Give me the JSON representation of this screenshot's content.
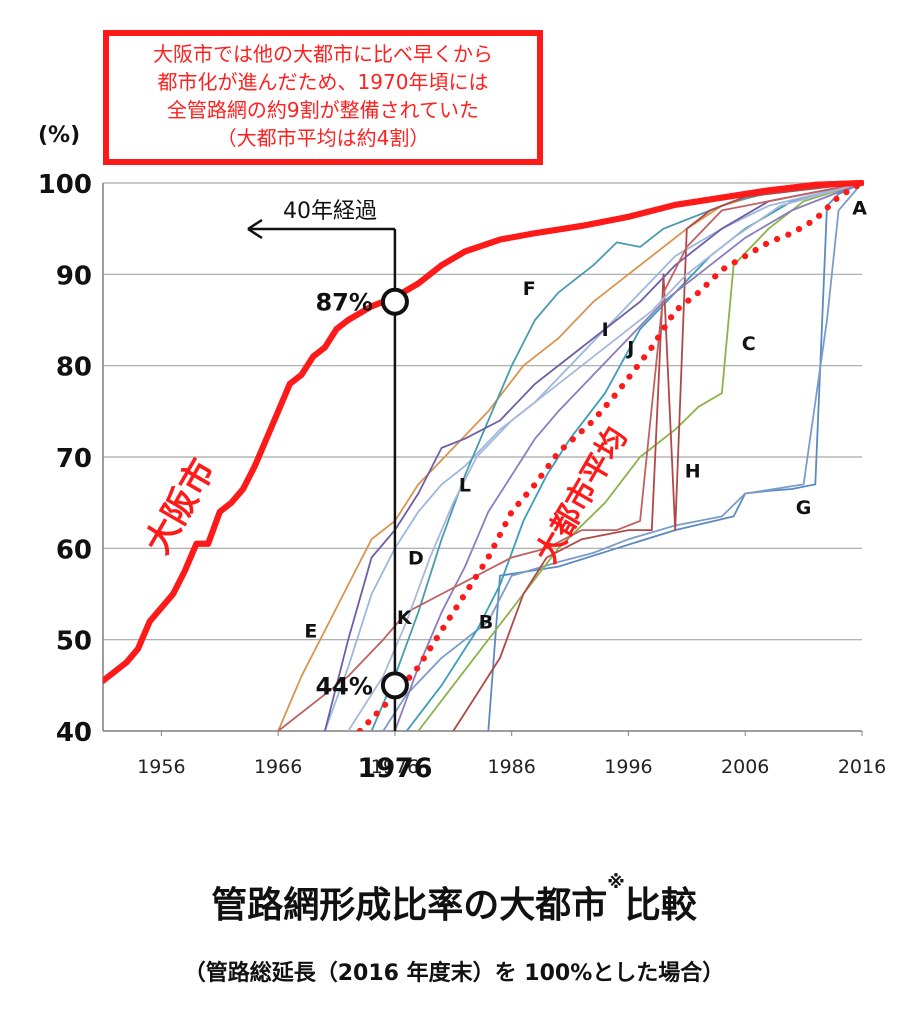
{
  "callout": {
    "lines": [
      "大阪市では他の大都市に比べ早くから",
      "都市化が進んだため、1970年頃には",
      "全管路網の約9割が整備されていた",
      "（大都市平均は約4割）"
    ]
  },
  "caption": {
    "title_main": "管路網形成比率の大都市",
    "title_mark": "※",
    "title_tail": "比較",
    "subtitle": "（管路総延長（2016 年度末）を 100%とした場合）"
  },
  "chart_data": {
    "type": "line",
    "ylabel": "(%)",
    "ylim": [
      40,
      100
    ],
    "xlim": [
      1951,
      2016
    ],
    "y_ticks": [
      40,
      50,
      60,
      70,
      80,
      90,
      100
    ],
    "x_ticks": [
      1956,
      1966,
      1976,
      1986,
      1996,
      2006,
      2016
    ],
    "x_highlight_label": "1976",
    "grid": true,
    "colors": {
      "osaka": "#ff1a1a",
      "average": "#ff1a1a",
      "annotation": "#ff1a1a"
    },
    "annotations": {
      "arrow_label": "40年経過",
      "marker_high": {
        "label": "87%",
        "x": 1976,
        "y": 87
      },
      "marker_low": {
        "label": "44%",
        "x": 1976,
        "y": 45
      },
      "osaka_label": "大阪市",
      "average_label": "大都市平均"
    },
    "series": [
      {
        "name": "大阪市",
        "color": "#ff1a1a",
        "style": "thick",
        "points": [
          [
            1951,
            45.5
          ],
          [
            1953,
            47.5
          ],
          [
            1954,
            49
          ],
          [
            1955,
            52
          ],
          [
            1957,
            55
          ],
          [
            1958,
            57.5
          ],
          [
            1959,
            60.5
          ],
          [
            1960,
            60.5
          ],
          [
            1961,
            64
          ],
          [
            1962,
            65
          ],
          [
            1963,
            66.5
          ],
          [
            1964,
            69
          ],
          [
            1965,
            72
          ],
          [
            1966,
            75
          ],
          [
            1967,
            78
          ],
          [
            1968,
            79
          ],
          [
            1969,
            81
          ],
          [
            1970,
            82
          ],
          [
            1971,
            84
          ],
          [
            1972,
            85
          ],
          [
            1974,
            86.5
          ],
          [
            1976,
            87.5
          ],
          [
            1978,
            89
          ],
          [
            1980,
            91
          ],
          [
            1982,
            92.5
          ],
          [
            1985,
            93.8
          ],
          [
            1988,
            94.5
          ],
          [
            1992,
            95.3
          ],
          [
            1996,
            96.3
          ],
          [
            2000,
            97.6
          ],
          [
            2004,
            98.4
          ],
          [
            2008,
            99.2
          ],
          [
            2012,
            99.8
          ],
          [
            2016,
            100
          ]
        ]
      },
      {
        "name": "大都市平均",
        "color": "#ff1a1a",
        "style": "dotted",
        "points": [
          [
            1973,
            40
          ],
          [
            1976,
            44
          ],
          [
            1978,
            47
          ],
          [
            1980,
            51
          ],
          [
            1982,
            55
          ],
          [
            1984,
            59
          ],
          [
            1986,
            64
          ],
          [
            1988,
            67
          ],
          [
            1990,
            70.5
          ],
          [
            1993,
            74
          ],
          [
            1995,
            77
          ],
          [
            1998,
            82
          ],
          [
            2000,
            86
          ],
          [
            2002,
            88
          ],
          [
            2004,
            90.5
          ],
          [
            2006,
            92
          ],
          [
            2008,
            93.5
          ],
          [
            2010,
            94.5
          ],
          [
            2012,
            96
          ],
          [
            2014,
            98.5
          ],
          [
            2016,
            100
          ]
        ]
      },
      {
        "name": "A",
        "color": "#5b8ac0",
        "points": [
          [
            1984,
            40
          ],
          [
            1985,
            57
          ],
          [
            1990,
            58
          ],
          [
            1995,
            60
          ],
          [
            2000,
            62
          ],
          [
            2005,
            63.5
          ],
          [
            2006,
            66
          ],
          [
            2008,
            66.3
          ],
          [
            2010,
            66.5
          ],
          [
            2012,
            67
          ],
          [
            2013,
            97.5
          ],
          [
            2014,
            98.8
          ],
          [
            2016,
            100
          ]
        ]
      },
      {
        "name": "G",
        "color": "#7b9cc9",
        "points": [
          [
            1975,
            40
          ],
          [
            1977,
            44
          ],
          [
            1980,
            48
          ],
          [
            1984,
            52
          ],
          [
            1986,
            57
          ],
          [
            1990,
            58.5
          ],
          [
            1993,
            59.5
          ],
          [
            1996,
            61
          ],
          [
            2000,
            62.5
          ],
          [
            2004,
            63.5
          ],
          [
            2006,
            66
          ],
          [
            2011,
            67
          ],
          [
            2013,
            85
          ],
          [
            2014,
            97
          ],
          [
            2016,
            100
          ]
        ]
      },
      {
        "name": "B",
        "color": "#3a9dbb",
        "points": [
          [
            1977,
            40
          ],
          [
            1980,
            45
          ],
          [
            1983,
            51
          ],
          [
            1985,
            56
          ],
          [
            1987,
            63
          ],
          [
            1989,
            68
          ],
          [
            1991,
            72
          ],
          [
            1994,
            77
          ],
          [
            1997,
            84
          ],
          [
            2000,
            88
          ],
          [
            2003,
            92
          ],
          [
            2006,
            95
          ],
          [
            2010,
            98
          ],
          [
            2016,
            100
          ]
        ]
      },
      {
        "name": "C",
        "color": "#8ab34a",
        "points": [
          [
            1978,
            40
          ],
          [
            1981,
            45
          ],
          [
            1984,
            50
          ],
          [
            1987,
            55
          ],
          [
            1990,
            60
          ],
          [
            1994,
            65
          ],
          [
            1997,
            70
          ],
          [
            2000,
            73
          ],
          [
            2002,
            75.5
          ],
          [
            2004,
            77
          ],
          [
            2005,
            91
          ],
          [
            2008,
            95
          ],
          [
            2011,
            98
          ],
          [
            2016,
            100
          ]
        ]
      },
      {
        "name": "D",
        "color": "#9ab8dd",
        "points": [
          [
            1970,
            40
          ],
          [
            1972,
            47
          ],
          [
            1974,
            55
          ],
          [
            1976,
            60
          ],
          [
            1978,
            64
          ],
          [
            1980,
            67
          ],
          [
            1982,
            69
          ],
          [
            1985,
            73
          ],
          [
            1988,
            76
          ],
          [
            1991,
            80
          ],
          [
            1994,
            84
          ],
          [
            1997,
            88
          ],
          [
            2000,
            92
          ],
          [
            2004,
            95
          ],
          [
            2008,
            97.5
          ],
          [
            2016,
            100
          ]
        ]
      },
      {
        "name": "E",
        "color": "#d9954f",
        "points": [
          [
            1966,
            40
          ],
          [
            1967,
            43
          ],
          [
            1968,
            46
          ],
          [
            1970,
            51
          ],
          [
            1972,
            56
          ],
          [
            1974,
            61
          ],
          [
            1976,
            63
          ],
          [
            1978,
            67
          ],
          [
            1981,
            71
          ],
          [
            1984,
            75
          ],
          [
            1987,
            80
          ],
          [
            1990,
            83
          ],
          [
            1993,
            87
          ],
          [
            1996,
            90
          ],
          [
            1998,
            92
          ],
          [
            2001,
            95
          ],
          [
            2004,
            97.5
          ],
          [
            2008,
            99
          ],
          [
            2016,
            100
          ]
        ]
      },
      {
        "name": "F",
        "color": "#4a9ab0",
        "points": [
          [
            1974,
            40
          ],
          [
            1976,
            46
          ],
          [
            1978,
            53
          ],
          [
            1980,
            61
          ],
          [
            1982,
            68
          ],
          [
            1984,
            74
          ],
          [
            1986,
            80
          ],
          [
            1988,
            85
          ],
          [
            1990,
            88
          ],
          [
            1993,
            91
          ],
          [
            1995,
            93.5
          ],
          [
            1997,
            93
          ],
          [
            1999,
            95
          ],
          [
            2002,
            96.5
          ],
          [
            2005,
            98
          ],
          [
            2010,
            99.5
          ],
          [
            2016,
            100
          ]
        ]
      },
      {
        "name": "H",
        "color": "#b04848",
        "points": [
          [
            1981,
            40
          ],
          [
            1983,
            44
          ],
          [
            1985,
            48
          ],
          [
            1987,
            55
          ],
          [
            1989,
            59
          ],
          [
            1992,
            61
          ],
          [
            1996,
            62
          ],
          [
            1998,
            62
          ],
          [
            1999,
            90
          ],
          [
            2000,
            62
          ],
          [
            2001,
            95
          ],
          [
            2003,
            97
          ],
          [
            2006,
            98.5
          ],
          [
            2016,
            100
          ]
        ]
      },
      {
        "name": "I",
        "color": "#6b5fa8",
        "points": [
          [
            1970,
            40
          ],
          [
            1972,
            50
          ],
          [
            1974,
            59
          ],
          [
            1976,
            62
          ],
          [
            1978,
            66
          ],
          [
            1980,
            71
          ],
          [
            1982,
            72
          ],
          [
            1985,
            74
          ],
          [
            1988,
            78
          ],
          [
            1991,
            81
          ],
          [
            1994,
            84
          ],
          [
            1997,
            87
          ],
          [
            2000,
            91
          ],
          [
            2004,
            95
          ],
          [
            2008,
            98
          ],
          [
            2016,
            100
          ]
        ]
      },
      {
        "name": "J",
        "color": "#8c7bbd",
        "points": [
          [
            1976,
            40
          ],
          [
            1978,
            47
          ],
          [
            1980,
            53
          ],
          [
            1982,
            58
          ],
          [
            1984,
            64
          ],
          [
            1986,
            68
          ],
          [
            1988,
            72
          ],
          [
            1990,
            75
          ],
          [
            1993,
            79
          ],
          [
            1996,
            83
          ],
          [
            1999,
            87
          ],
          [
            2002,
            90
          ],
          [
            2006,
            94
          ],
          [
            2010,
            97
          ],
          [
            2016,
            100
          ]
        ]
      },
      {
        "name": "K",
        "color": "#c06060",
        "points": [
          [
            1966,
            40
          ],
          [
            1969,
            43
          ],
          [
            1972,
            46
          ],
          [
            1975,
            50
          ],
          [
            1977,
            53
          ],
          [
            1980,
            55
          ],
          [
            1983,
            57
          ],
          [
            1986,
            59
          ],
          [
            1989,
            60
          ],
          [
            1992,
            62
          ],
          [
            1995,
            62
          ],
          [
            1997,
            63
          ],
          [
            1999,
            88
          ],
          [
            2001,
            93
          ],
          [
            2004,
            97
          ],
          [
            2016,
            100
          ]
        ]
      },
      {
        "name": "L",
        "color": "#a8b8d8",
        "points": [
          [
            1972,
            40
          ],
          [
            1975,
            46
          ],
          [
            1977,
            52
          ],
          [
            1979,
            59
          ],
          [
            1981,
            65
          ],
          [
            1983,
            70
          ],
          [
            1986,
            74
          ],
          [
            1989,
            77
          ],
          [
            1992,
            80
          ],
          [
            1995,
            83
          ],
          [
            1998,
            86
          ],
          [
            2001,
            90
          ],
          [
            2005,
            94
          ],
          [
            2009,
            97.5
          ],
          [
            2016,
            100
          ]
        ]
      }
    ],
    "series_labels": [
      {
        "text": "A",
        "x": 2015.8,
        "y": 97.3
      },
      {
        "text": "B",
        "x": 1983.8,
        "y": 52
      },
      {
        "text": "C",
        "x": 2006.3,
        "y": 82.5
      },
      {
        "text": "D",
        "x": 1977.8,
        "y": 59
      },
      {
        "text": "E",
        "x": 1968.8,
        "y": 51
      },
      {
        "text": "F",
        "x": 1987.5,
        "y": 88.5
      },
      {
        "text": "G",
        "x": 2011,
        "y": 64.5
      },
      {
        "text": "H",
        "x": 2001.5,
        "y": 68.5
      },
      {
        "text": "I",
        "x": 1994,
        "y": 84
      },
      {
        "text": "J",
        "x": 1996.2,
        "y": 82
      },
      {
        "text": "K",
        "x": 1976.8,
        "y": 52.5
      },
      {
        "text": "L",
        "x": 1982,
        "y": 67
      }
    ]
  }
}
